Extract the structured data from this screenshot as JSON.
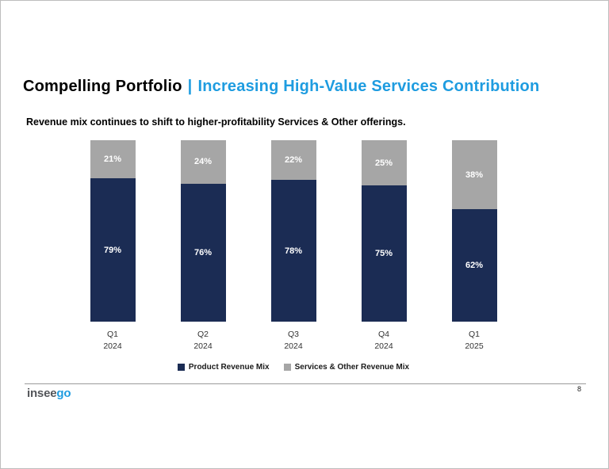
{
  "slide": {
    "title": {
      "black": "Compelling Portfolio",
      "separator": "|",
      "blue": "Increasing High-Value Services Contribution"
    },
    "subtitle": "Revenue mix continues to shift to higher-profitability Services & Other offerings.",
    "footer": {
      "page_number": "8",
      "logo_gray": "insee",
      "logo_blue": "go"
    }
  },
  "colors": {
    "accent_blue": "#1E9CE0",
    "product_navy": "#1B2C54",
    "services_gray": "#A6A6A6"
  },
  "chart_data": {
    "type": "bar",
    "stacked": true,
    "categories": [
      [
        "Q1",
        "2024"
      ],
      [
        "Q2",
        "2024"
      ],
      [
        "Q3",
        "2024"
      ],
      [
        "Q4",
        "2024"
      ],
      [
        "Q1",
        "2025"
      ]
    ],
    "series": [
      {
        "name": "Product Revenue Mix",
        "color": "#1B2C54",
        "values": [
          79,
          76,
          78,
          75,
          62
        ]
      },
      {
        "name": "Services & Other Revenue Mix",
        "color": "#A6A6A6",
        "values": [
          21,
          24,
          22,
          25,
          38
        ]
      }
    ],
    "value_suffix": "%",
    "ylim": [
      0,
      100
    ],
    "grid": false,
    "legend_position": "bottom"
  }
}
